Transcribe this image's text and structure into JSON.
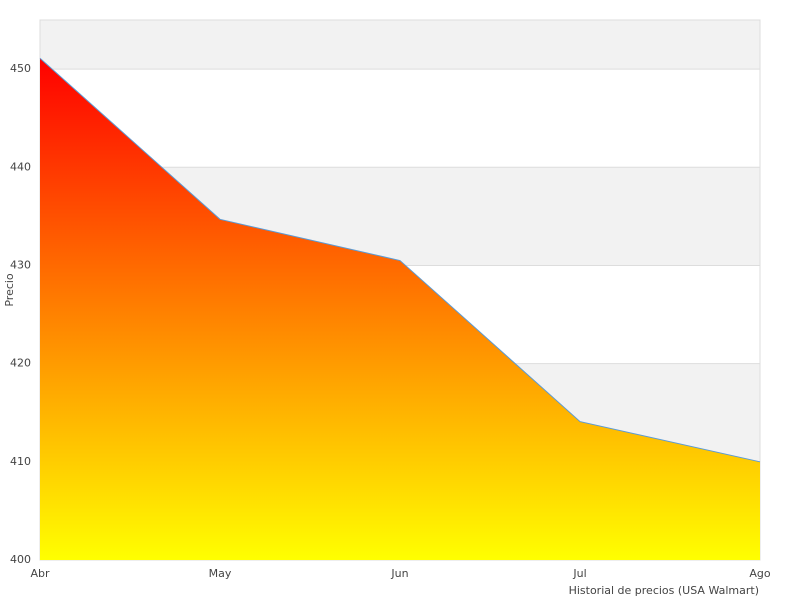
{
  "chart_data": {
    "type": "area",
    "categories": [
      "Abr",
      "May",
      "Jun",
      "Jul",
      "Ago"
    ],
    "values": [
      451.1,
      434.7,
      430.5,
      414.1,
      410
    ],
    "ylim": [
      400,
      455
    ],
    "yticks": [
      400,
      410,
      420,
      430,
      440,
      450
    ],
    "ylabel": "Precio",
    "xlabel": "Historial de precios (USA Walmart)",
    "color": "#5b9bd5",
    "gradient": [
      "#ff0000",
      "#ffff00"
    ],
    "grid": true,
    "band_color": "#f2f2f2"
  }
}
